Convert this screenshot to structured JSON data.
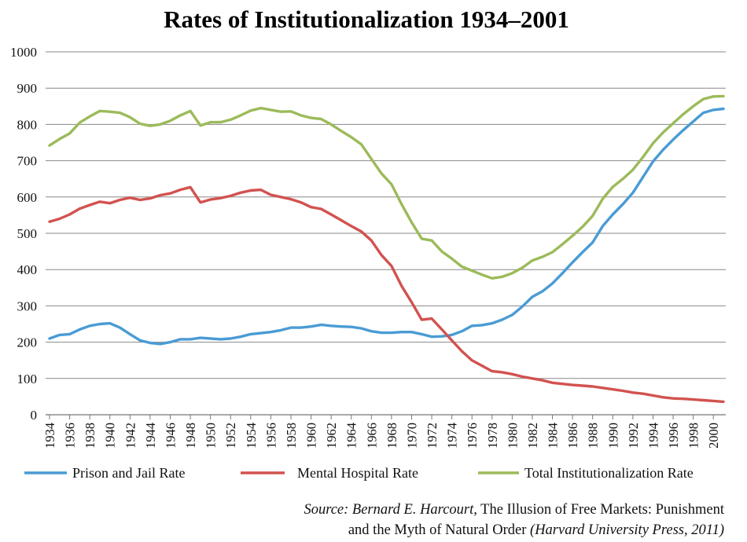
{
  "chart_data": {
    "type": "line",
    "title": "Rates of Institutionalization 1934–2001",
    "xlabel": "",
    "ylabel": "",
    "ylim": [
      0,
      1000
    ],
    "yticks": [
      "0",
      "100",
      "200",
      "300",
      "400",
      "500",
      "600",
      "700",
      "800",
      "900",
      "1000"
    ],
    "xlim": [
      1934,
      2001
    ],
    "xticks": [
      "1934",
      "1936",
      "1938",
      "1940",
      "1942",
      "1944",
      "1946",
      "1948",
      "1950",
      "1952",
      "1954",
      "1956",
      "1958",
      "1960",
      "1962",
      "1964",
      "1966",
      "1968",
      "1970",
      "1972",
      "1974",
      "1976",
      "1978",
      "1980",
      "1982",
      "1984",
      "1986",
      "1988",
      "1990",
      "1992",
      "1994",
      "1996",
      "1998",
      "2000"
    ],
    "grid": true,
    "legend_position": "bottom",
    "x": [
      1934,
      1935,
      1936,
      1937,
      1938,
      1939,
      1940,
      1941,
      1942,
      1943,
      1944,
      1945,
      1946,
      1947,
      1948,
      1949,
      1950,
      1951,
      1952,
      1953,
      1954,
      1955,
      1956,
      1957,
      1958,
      1959,
      1960,
      1961,
      1962,
      1963,
      1964,
      1965,
      1966,
      1967,
      1968,
      1969,
      1970,
      1971,
      1972,
      1973,
      1974,
      1975,
      1976,
      1977,
      1978,
      1979,
      1980,
      1981,
      1982,
      1983,
      1984,
      1985,
      1986,
      1987,
      1988,
      1989,
      1990,
      1991,
      1992,
      1993,
      1994,
      1995,
      1996,
      1997,
      1998,
      1999,
      2000,
      2001
    ],
    "series": [
      {
        "name": "Prison and Jail Rate",
        "color": "#4a9bd4",
        "values": [
          210,
          220,
          222,
          235,
          245,
          250,
          252,
          240,
          222,
          205,
          198,
          195,
          200,
          208,
          208,
          212,
          210,
          208,
          210,
          215,
          222,
          225,
          228,
          233,
          240,
          240,
          243,
          248,
          245,
          243,
          242,
          238,
          230,
          226,
          226,
          228,
          228,
          222,
          215,
          216,
          220,
          230,
          245,
          247,
          252,
          262,
          275,
          298,
          325,
          340,
          362,
          390,
          420,
          448,
          475,
          520,
          552,
          580,
          612,
          655,
          698,
          730,
          758,
          784,
          808,
          832,
          840,
          843
        ]
      },
      {
        "name": "Mental Hospital Rate",
        "color": "#d2524f",
        "values": [
          532,
          540,
          552,
          568,
          578,
          587,
          583,
          592,
          598,
          592,
          596,
          605,
          610,
          620,
          627,
          585,
          593,
          597,
          603,
          612,
          618,
          620,
          606,
          600,
          594,
          585,
          572,
          567,
          552,
          536,
          520,
          505,
          480,
          440,
          410,
          355,
          310,
          262,
          265,
          235,
          205,
          175,
          150,
          135,
          120,
          117,
          112,
          105,
          100,
          95,
          88,
          85,
          82,
          80,
          78,
          74,
          70,
          66,
          61,
          58,
          53,
          48,
          45,
          44,
          42,
          40,
          38,
          36
        ]
      },
      {
        "name": "Total Institutionalization Rate",
        "color": "#9bbb59",
        "values": [
          742,
          760,
          775,
          805,
          822,
          837,
          835,
          832,
          820,
          802,
          796,
          800,
          810,
          825,
          837,
          797,
          806,
          806,
          813,
          825,
          838,
          845,
          840,
          835,
          836,
          825,
          818,
          815,
          800,
          782,
          765,
          745,
          705,
          665,
          635,
          580,
          530,
          485,
          480,
          450,
          430,
          408,
          397,
          386,
          376,
          380,
          390,
          405,
          425,
          435,
          448,
          470,
          493,
          518,
          548,
          595,
          628,
          650,
          675,
          710,
          748,
          778,
          803,
          828,
          850,
          870,
          877,
          878
        ]
      }
    ],
    "source": {
      "line1_italic": "Source: Bernard E. Harcourt,",
      "line1_roman": " The Illusion of Free Markets: Punishment",
      "line2_roman": "and the Myth of Natural Order ",
      "line2_italic": "(Harvard University Press, 2011)"
    },
    "colors": {
      "gridline": "#888888",
      "axis": "#777777"
    }
  }
}
